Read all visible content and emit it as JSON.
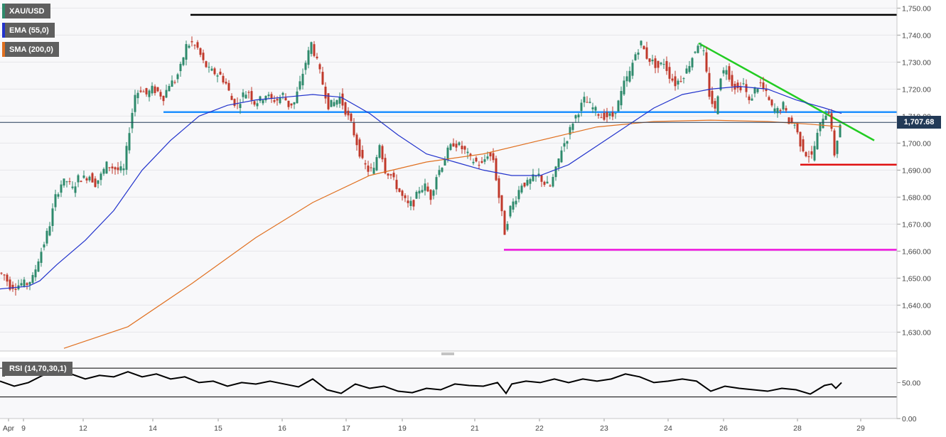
{
  "symbol": "XAU/USD",
  "indicators": {
    "ema": {
      "label": "EMA (55,0)",
      "color": "#2233cc"
    },
    "sma": {
      "label": "SMA (200,0)",
      "color": "#e07020"
    }
  },
  "rsi_label": "RSI (14,70,30,1)",
  "current_price_label": "1,707.68",
  "chart_data": {
    "type": "candlestick",
    "symbol": "XAU/USD",
    "ylim": [
      1623,
      1753
    ],
    "y_ticks": [
      1630,
      1640,
      1650,
      1660,
      1670,
      1680,
      1690,
      1700,
      1710,
      1720,
      1730,
      1740,
      1750
    ],
    "y_tick_labels": [
      "1,630.00",
      "1,640.00",
      "1,650.00",
      "1,660.00",
      "1,670.00",
      "1,680.00",
      "1,690.00",
      "1,700.00",
      "1,710.00",
      "1,720.00",
      "1,730.00",
      "1,740.00",
      "1,750.00"
    ],
    "x_ticks": [
      "Apr",
      "9",
      "12",
      "14",
      "15",
      "16",
      "17",
      "19",
      "21",
      "22",
      "23",
      "24",
      "26",
      "28",
      "29"
    ],
    "price_path": [
      [
        0,
        1652
      ],
      [
        8,
        1651
      ],
      [
        16,
        1647
      ],
      [
        24,
        1647
      ],
      [
        32,
        1648
      ],
      [
        40,
        1648
      ],
      [
        48,
        1650
      ],
      [
        56,
        1657
      ],
      [
        64,
        1663
      ],
      [
        72,
        1670
      ],
      [
        80,
        1680
      ],
      [
        88,
        1685
      ],
      [
        96,
        1686
      ],
      [
        104,
        1683
      ],
      [
        112,
        1687
      ],
      [
        120,
        1687
      ],
      [
        128,
        1688
      ],
      [
        136,
        1685
      ],
      [
        144,
        1688
      ],
      [
        152,
        1692
      ],
      [
        160,
        1691
      ],
      [
        168,
        1690
      ],
      [
        176,
        1690
      ],
      [
        184,
        1705
      ],
      [
        192,
        1718
      ],
      [
        200,
        1720
      ],
      [
        208,
        1718
      ],
      [
        216,
        1720
      ],
      [
        224,
        1719
      ],
      [
        232,
        1717
      ],
      [
        240,
        1722
      ],
      [
        248,
        1723
      ],
      [
        256,
        1728
      ],
      [
        264,
        1736
      ],
      [
        272,
        1737
      ],
      [
        280,
        1735
      ],
      [
        288,
        1730
      ],
      [
        296,
        1727
      ],
      [
        304,
        1726
      ],
      [
        312,
        1725
      ],
      [
        320,
        1722
      ],
      [
        328,
        1716
      ],
      [
        336,
        1714
      ],
      [
        344,
        1718
      ],
      [
        352,
        1719
      ],
      [
        360,
        1715
      ],
      [
        368,
        1716
      ],
      [
        376,
        1718
      ],
      [
        384,
        1716
      ],
      [
        392,
        1716
      ],
      [
        400,
        1718
      ],
      [
        408,
        1714
      ],
      [
        416,
        1715
      ],
      [
        424,
        1722
      ],
      [
        432,
        1730
      ],
      [
        440,
        1737
      ],
      [
        448,
        1730
      ],
      [
        456,
        1722
      ],
      [
        464,
        1714
      ],
      [
        472,
        1715
      ],
      [
        480,
        1717
      ],
      [
        488,
        1712
      ],
      [
        496,
        1707
      ],
      [
        504,
        1700
      ],
      [
        512,
        1693
      ],
      [
        520,
        1690
      ],
      [
        528,
        1690
      ],
      [
        536,
        1700
      ],
      [
        544,
        1690
      ],
      [
        552,
        1688
      ],
      [
        560,
        1684
      ],
      [
        568,
        1680
      ],
      [
        576,
        1677
      ],
      [
        584,
        1678
      ],
      [
        592,
        1683
      ],
      [
        600,
        1684
      ],
      [
        608,
        1680
      ],
      [
        616,
        1688
      ],
      [
        624,
        1692
      ],
      [
        632,
        1697
      ],
      [
        640,
        1700
      ],
      [
        648,
        1699
      ],
      [
        656,
        1697
      ],
      [
        664,
        1694
      ],
      [
        672,
        1693
      ],
      [
        680,
        1692
      ],
      [
        688,
        1696
      ],
      [
        696,
        1694
      ],
      [
        704,
        1680
      ],
      [
        712,
        1667
      ],
      [
        720,
        1676
      ],
      [
        728,
        1680
      ],
      [
        736,
        1685
      ],
      [
        744,
        1685
      ],
      [
        752,
        1687
      ],
      [
        760,
        1688
      ],
      [
        768,
        1685
      ],
      [
        776,
        1684
      ],
      [
        784,
        1690
      ],
      [
        792,
        1698
      ],
      [
        800,
        1702
      ],
      [
        808,
        1708
      ],
      [
        816,
        1712
      ],
      [
        824,
        1716
      ],
      [
        832,
        1714
      ],
      [
        840,
        1712
      ],
      [
        848,
        1710
      ],
      [
        856,
        1710
      ],
      [
        864,
        1710
      ],
      [
        872,
        1715
      ],
      [
        880,
        1722
      ],
      [
        888,
        1726
      ],
      [
        896,
        1733
      ],
      [
        904,
        1737
      ],
      [
        912,
        1732
      ],
      [
        920,
        1730
      ],
      [
        928,
        1728
      ],
      [
        936,
        1730
      ],
      [
        944,
        1725
      ],
      [
        952,
        1722
      ],
      [
        960,
        1724
      ],
      [
        968,
        1727
      ],
      [
        976,
        1732
      ],
      [
        984,
        1737
      ],
      [
        992,
        1733
      ],
      [
        1000,
        1718
      ],
      [
        1008,
        1712
      ],
      [
        1016,
        1725
      ],
      [
        1024,
        1728
      ],
      [
        1032,
        1722
      ],
      [
        1040,
        1720
      ],
      [
        1048,
        1722
      ],
      [
        1056,
        1715
      ],
      [
        1064,
        1720
      ],
      [
        1072,
        1722
      ],
      [
        1080,
        1718
      ],
      [
        1088,
        1713
      ],
      [
        1096,
        1712
      ],
      [
        1104,
        1714
      ],
      [
        1112,
        1708
      ],
      [
        1120,
        1707
      ],
      [
        1128,
        1700
      ],
      [
        1136,
        1696
      ],
      [
        1144,
        1695
      ],
      [
        1152,
        1703
      ],
      [
        1160,
        1710
      ],
      [
        1168,
        1712
      ],
      [
        1176,
        1696
      ],
      [
        1184,
        1707
      ]
    ],
    "ema_path": [
      [
        0,
        1646
      ],
      [
        40,
        1647
      ],
      [
        56,
        1649
      ],
      [
        80,
        1655
      ],
      [
        120,
        1664
      ],
      [
        160,
        1675
      ],
      [
        200,
        1690
      ],
      [
        240,
        1701
      ],
      [
        280,
        1710
      ],
      [
        320,
        1714
      ],
      [
        360,
        1716
      ],
      [
        400,
        1717
      ],
      [
        440,
        1718
      ],
      [
        480,
        1717
      ],
      [
        520,
        1711
      ],
      [
        560,
        1703
      ],
      [
        600,
        1696
      ],
      [
        640,
        1693
      ],
      [
        680,
        1690
      ],
      [
        720,
        1688
      ],
      [
        760,
        1688
      ],
      [
        800,
        1692
      ],
      [
        840,
        1699
      ],
      [
        880,
        1706
      ],
      [
        920,
        1713
      ],
      [
        960,
        1718
      ],
      [
        1000,
        1720
      ],
      [
        1040,
        1721
      ],
      [
        1080,
        1720
      ],
      [
        1120,
        1716
      ],
      [
        1160,
        1713
      ],
      [
        1184,
        1711
      ]
    ],
    "sma_path": [
      [
        90,
        1624
      ],
      [
        180,
        1632
      ],
      [
        270,
        1648
      ],
      [
        360,
        1665
      ],
      [
        440,
        1678
      ],
      [
        520,
        1688
      ],
      [
        600,
        1693
      ],
      [
        680,
        1696
      ],
      [
        760,
        1701
      ],
      [
        840,
        1706
      ],
      [
        920,
        1708
      ],
      [
        1000,
        1708.5
      ],
      [
        1080,
        1708
      ],
      [
        1140,
        1707
      ],
      [
        1184,
        1706
      ]
    ],
    "rsi_path": [
      [
        0,
        52
      ],
      [
        20,
        45
      ],
      [
        40,
        50
      ],
      [
        60,
        60
      ],
      [
        80,
        64
      ],
      [
        100,
        62
      ],
      [
        120,
        55
      ],
      [
        140,
        60
      ],
      [
        160,
        58
      ],
      [
        180,
        65
      ],
      [
        200,
        58
      ],
      [
        220,
        62
      ],
      [
        240,
        55
      ],
      [
        260,
        58
      ],
      [
        280,
        50
      ],
      [
        300,
        52
      ],
      [
        320,
        45
      ],
      [
        340,
        50
      ],
      [
        360,
        48
      ],
      [
        380,
        52
      ],
      [
        400,
        48
      ],
      [
        420,
        44
      ],
      [
        440,
        55
      ],
      [
        460,
        40
      ],
      [
        480,
        35
      ],
      [
        500,
        48
      ],
      [
        520,
        42
      ],
      [
        540,
        45
      ],
      [
        560,
        38
      ],
      [
        580,
        36
      ],
      [
        600,
        42
      ],
      [
        620,
        40
      ],
      [
        640,
        48
      ],
      [
        660,
        46
      ],
      [
        680,
        45
      ],
      [
        700,
        50
      ],
      [
        712,
        35
      ],
      [
        720,
        48
      ],
      [
        740,
        52
      ],
      [
        760,
        50
      ],
      [
        780,
        55
      ],
      [
        800,
        50
      ],
      [
        820,
        55
      ],
      [
        840,
        52
      ],
      [
        860,
        55
      ],
      [
        880,
        62
      ],
      [
        900,
        58
      ],
      [
        920,
        50
      ],
      [
        940,
        52
      ],
      [
        960,
        55
      ],
      [
        980,
        52
      ],
      [
        1000,
        38
      ],
      [
        1020,
        45
      ],
      [
        1040,
        42
      ],
      [
        1060,
        40
      ],
      [
        1080,
        38
      ],
      [
        1100,
        42
      ],
      [
        1120,
        40
      ],
      [
        1140,
        34
      ],
      [
        1160,
        46
      ],
      [
        1170,
        48
      ],
      [
        1176,
        42
      ],
      [
        1184,
        50
      ]
    ],
    "rsi_levels": [
      30,
      70
    ],
    "rsi_ylim": [
      0,
      85
    ],
    "rsi_ticks": [
      0,
      50
    ],
    "rsi_tick_labels": [
      "0.00",
      "50.00"
    ],
    "current_price": 1707.68,
    "annotations": [
      {
        "type": "hline",
        "y": 1747.5,
        "x_from": 268,
        "x_to": 1262,
        "color": "#000000"
      },
      {
        "type": "hline",
        "y": 1711.5,
        "x_from": 230,
        "x_to": 1262,
        "color": "#1e90ff"
      },
      {
        "type": "hline",
        "y": 1692,
        "x_from": 1126,
        "x_to": 1262,
        "color": "#e01010"
      },
      {
        "type": "hline",
        "y": 1660.5,
        "x_from": 709,
        "x_to": 1262,
        "color": "#ee10dd"
      },
      {
        "type": "trendline",
        "from": [
          983,
          1737
        ],
        "to": [
          1230,
          1701
        ],
        "color": "#22cc22"
      }
    ]
  }
}
